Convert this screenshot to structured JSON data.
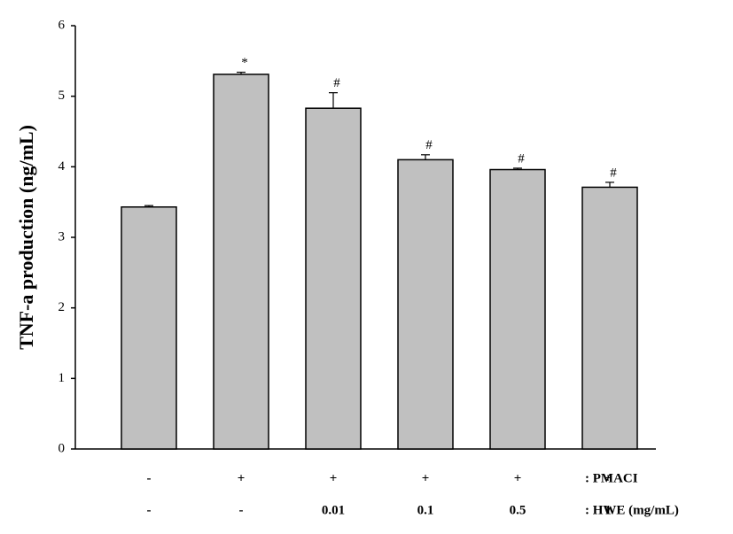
{
  "chart_data": {
    "type": "bar",
    "y_label": "TNF-a production (ng/mL)",
    "values": [
      3.43,
      5.31,
      4.83,
      4.1,
      3.96,
      3.71
    ],
    "errors": [
      0.02,
      0.03,
      0.22,
      0.07,
      0.02,
      0.07
    ],
    "annotations": [
      null,
      "*",
      "#",
      "#",
      "#",
      "#"
    ],
    "treatments": [
      {
        "label": ": PMACI",
        "values": [
          "-",
          "+",
          "+",
          "+",
          "+",
          "+"
        ]
      },
      {
        "label": ": HWE (mg/mL)",
        "values": [
          "-",
          "-",
          "0.01",
          "0.1",
          "0.5",
          "1"
        ]
      }
    ],
    "color": "#c0c0c0",
    "ylim": [
      0,
      6
    ],
    "yticks": [
      0,
      1,
      2,
      3,
      4,
      5,
      6
    ],
    "grid": false
  }
}
